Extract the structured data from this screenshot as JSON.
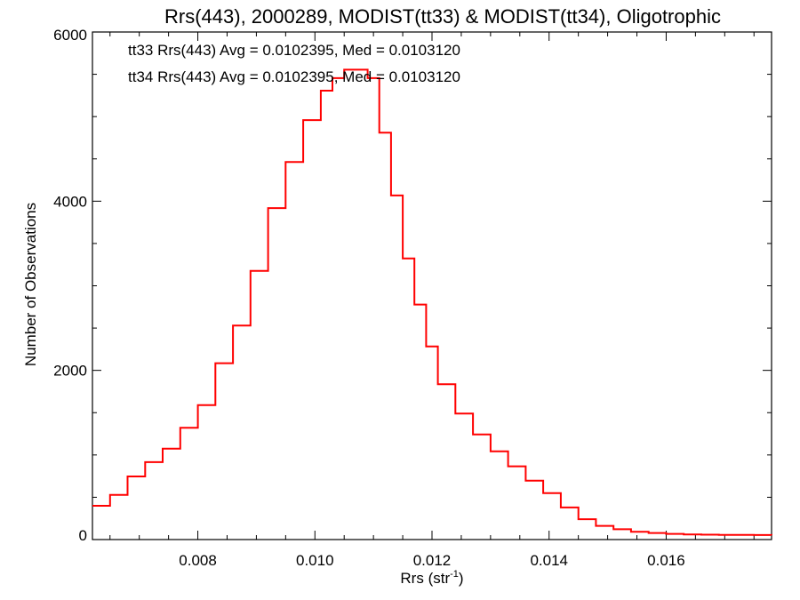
{
  "chart_data": {
    "type": "histogram",
    "title": "Rrs(443), 2000289, MODIST(tt33) & MODIST(tt34), Oligotrophic",
    "xlabel": "Rrs (str",
    "xlabel_sup": "-1",
    "xlabel_close": ")",
    "ylabel": "Number of Observations",
    "xlim": [
      0.0062,
      0.0178
    ],
    "ylim": [
      0,
      6000
    ],
    "x_ticks": [
      {
        "value": 0.008,
        "label": "0.008"
      },
      {
        "value": 0.01,
        "label": "0.010"
      },
      {
        "value": 0.012,
        "label": "0.012"
      },
      {
        "value": 0.014,
        "label": "0.014"
      },
      {
        "value": 0.016,
        "label": "0.016"
      }
    ],
    "y_ticks": [
      {
        "value": 0,
        "label": "0"
      },
      {
        "value": 2000,
        "label": "2000"
      },
      {
        "value": 4000,
        "label": "4000"
      },
      {
        "value": 6000,
        "label": "6000"
      }
    ],
    "annotations": [
      {
        "text": "tt33 Rrs(443) Avg = 0.0102395, Med = 0.0103120",
        "color": "#000000"
      },
      {
        "text": "tt34 Rrs(443) Avg = 0.0102395, Med = 0.0103120",
        "color": "#ff0000"
      }
    ],
    "series": [
      {
        "color": "#ff0000",
        "x": [
          0.0062,
          0.0065,
          0.0068,
          0.0071,
          0.0074,
          0.0077,
          0.008,
          0.0083,
          0.0086,
          0.0089,
          0.0092,
          0.0095,
          0.0098,
          0.0101,
          0.0103,
          0.0105,
          0.0107,
          0.0109,
          0.0111,
          0.0113,
          0.0115,
          0.0117,
          0.0119,
          0.0121,
          0.0124,
          0.0127,
          0.013,
          0.0133,
          0.0136,
          0.0139,
          0.0142,
          0.0145,
          0.0148,
          0.0151,
          0.0154,
          0.0157,
          0.016,
          0.0163,
          0.0166,
          0.0169,
          0.0172,
          0.0175,
          0.0178
        ],
        "values": [
          350,
          480,
          700,
          870,
          1030,
          1280,
          1550,
          2050,
          2500,
          3150,
          3900,
          4450,
          4950,
          5300,
          5450,
          5550,
          5550,
          5450,
          4800,
          4050,
          3300,
          2750,
          2250,
          1800,
          1450,
          1200,
          1000,
          820,
          650,
          500,
          330,
          190,
          110,
          70,
          40,
          25,
          15,
          8,
          5,
          3,
          2,
          1,
          0
        ]
      }
    ]
  }
}
